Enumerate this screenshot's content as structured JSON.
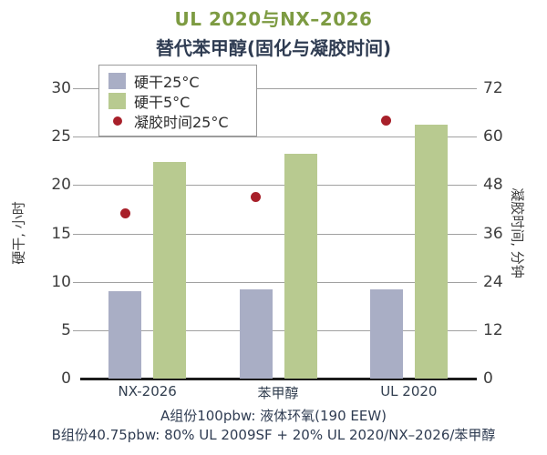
{
  "chart_data": {
    "type": "bar",
    "title": "UL 2020与NX–2026",
    "subtitle": "替代苯甲醇(固化与凝胶时间)",
    "categories": [
      "NX-2026",
      "苯甲醇",
      "UL 2020"
    ],
    "series": [
      {
        "name": "硬干25°C",
        "type": "bar",
        "axis": "left",
        "color": "#a9aec5",
        "values": [
          9.0,
          9.2,
          9.2
        ]
      },
      {
        "name": "硬干5°C",
        "type": "bar",
        "axis": "left",
        "color": "#b8ca90",
        "values": [
          22.4,
          23.2,
          26.2
        ]
      },
      {
        "name": "凝胶时间25°C",
        "type": "scatter",
        "axis": "right",
        "color": "#a8202a",
        "values": [
          41,
          45,
          64
        ]
      }
    ],
    "left_axis": {
      "label": "硬干, 小时",
      "min": 0,
      "max": 30,
      "ticks": [
        0,
        5,
        10,
        15,
        20,
        25,
        30
      ]
    },
    "right_axis": {
      "label": "凝胶时间, 分钟",
      "min": 0,
      "max": 72,
      "ticks": [
        0,
        12,
        24,
        36,
        48,
        60,
        72
      ]
    },
    "grid": true,
    "legend_position": "top-left-inside",
    "footnotes": [
      "A组份100pbw: 液体环氧(190 EEW)",
      "B组份40.75pbw: 80% UL 2009SF + 20% UL 2020/NX–2026/苯甲醇"
    ]
  },
  "colors": {
    "background": "#ffffff",
    "title_green": "#7d9b42",
    "dark_text": "#2f3c52",
    "tick_text": "#3d3d3d",
    "gridline": "#a0a0a0",
    "axis_line": "#1c1c1c",
    "legend_border": "#999999"
  }
}
